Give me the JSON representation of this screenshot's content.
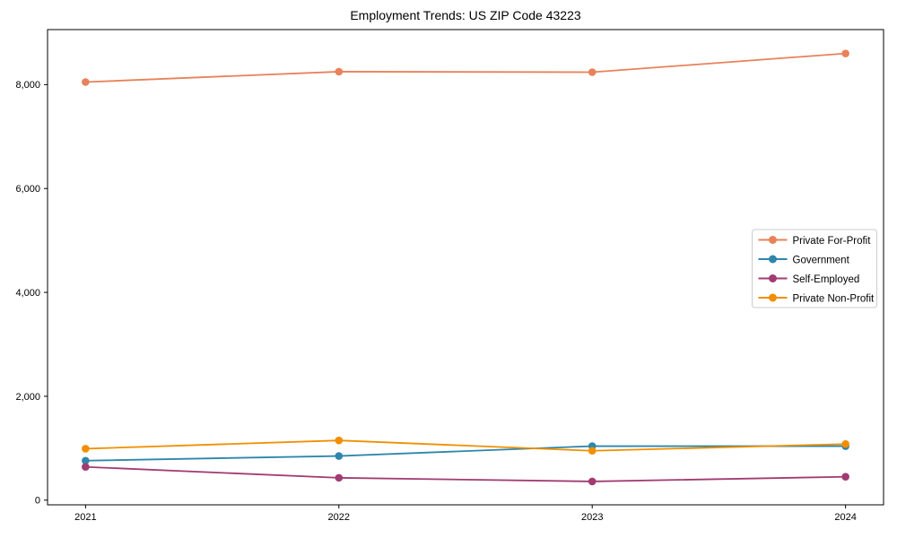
{
  "chart_data": {
    "type": "line",
    "title": "Employment Trends: US ZIP Code 43223",
    "x": [
      2021,
      2022,
      2023,
      2024
    ],
    "xtick_labels": [
      "2021",
      "2022",
      "2023",
      "2024"
    ],
    "series": [
      {
        "name": "Private For-Profit",
        "color": "#E8825A",
        "values": [
          8050,
          8250,
          8240,
          8600
        ]
      },
      {
        "name": "Government",
        "color": "#2E86AB",
        "values": [
          760,
          850,
          1040,
          1040
        ]
      },
      {
        "name": "Self-Employed",
        "color": "#A23B72",
        "values": [
          640,
          430,
          360,
          450
        ]
      },
      {
        "name": "Private Non-Profit",
        "color": "#F18F01",
        "values": [
          990,
          1150,
          950,
          1080
        ]
      }
    ],
    "yticks": [
      0,
      2000,
      4000,
      6000,
      8000
    ],
    "ytick_labels": [
      "0",
      "2,000",
      "4,000",
      "6,000",
      "8,000"
    ],
    "xlim": [
      2020.85,
      2024.15
    ],
    "ylim": [
      -90,
      9060
    ],
    "grid": false,
    "legend": {
      "position": "center-right",
      "entries": [
        "Private For-Profit",
        "Government",
        "Self-Employed",
        "Private Non-Profit"
      ],
      "border_color": "#cccccc",
      "background": "#ffffff"
    },
    "frame_color": "#000000",
    "tick_color": "#000000"
  }
}
